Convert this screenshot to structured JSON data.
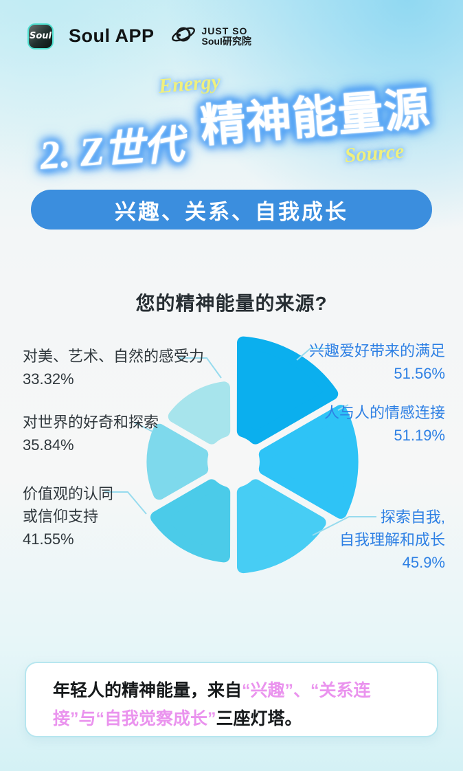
{
  "header": {
    "soul_logo_text": "Soul",
    "soul_app_label": "Soul APP",
    "justso_line1": "JUST SO",
    "justso_line2": "Soul研究院"
  },
  "title": {
    "prefix": "2.",
    "main": "Z世代精神能量源",
    "prefix_part": "2. Z世代",
    "main_part": "精神能量源",
    "energy_label": "Energy",
    "source_label": "Source"
  },
  "banner": {
    "text": "兴趣、关系、自我成长",
    "bg_color": "#3b8ede"
  },
  "chart_data": {
    "type": "pie",
    "variant": "petal-rose",
    "title": "您的精神能量的来源?",
    "unit": "%",
    "order": "clockwise-from-top",
    "max_value_radius_px": 185,
    "connector_color": "#97dbee",
    "series": [
      {
        "label": "兴趣爱好带来的满足",
        "value": 51.56,
        "display": "51.56%",
        "color": "#0bafee"
      },
      {
        "label": "人与人的情感连接",
        "value": 51.19,
        "display": "51.19%",
        "color": "#2ec3f6"
      },
      {
        "label": "探索自我, 自我理解和成长",
        "value": 45.9,
        "display": "45.9%",
        "color": "#47cdf4",
        "label_lines": [
          "探索自我,",
          "自我理解和成长"
        ]
      },
      {
        "label": "价值观的认同或信仰支持",
        "value": 41.55,
        "display": "41.55%",
        "color": "#4bcbe9",
        "label_lines": [
          "价值观的认同",
          "或信仰支持"
        ]
      },
      {
        "label": "对世界的好奇和探索",
        "value": 35.84,
        "display": "35.84%",
        "color": "#7ed9ec"
      },
      {
        "label": "对美、艺术、自然的感受力",
        "value": 33.32,
        "display": "33.32%",
        "color": "#a7e4ec"
      }
    ]
  },
  "footer_note": {
    "segments": [
      {
        "text": "年轻人的精神能量，来自",
        "style": "dark"
      },
      {
        "text": "“兴趣”、“关系连接”与“自我觉察成长”",
        "style": "pink"
      },
      {
        "text": "三座灯塔。",
        "style": "dark"
      }
    ]
  }
}
